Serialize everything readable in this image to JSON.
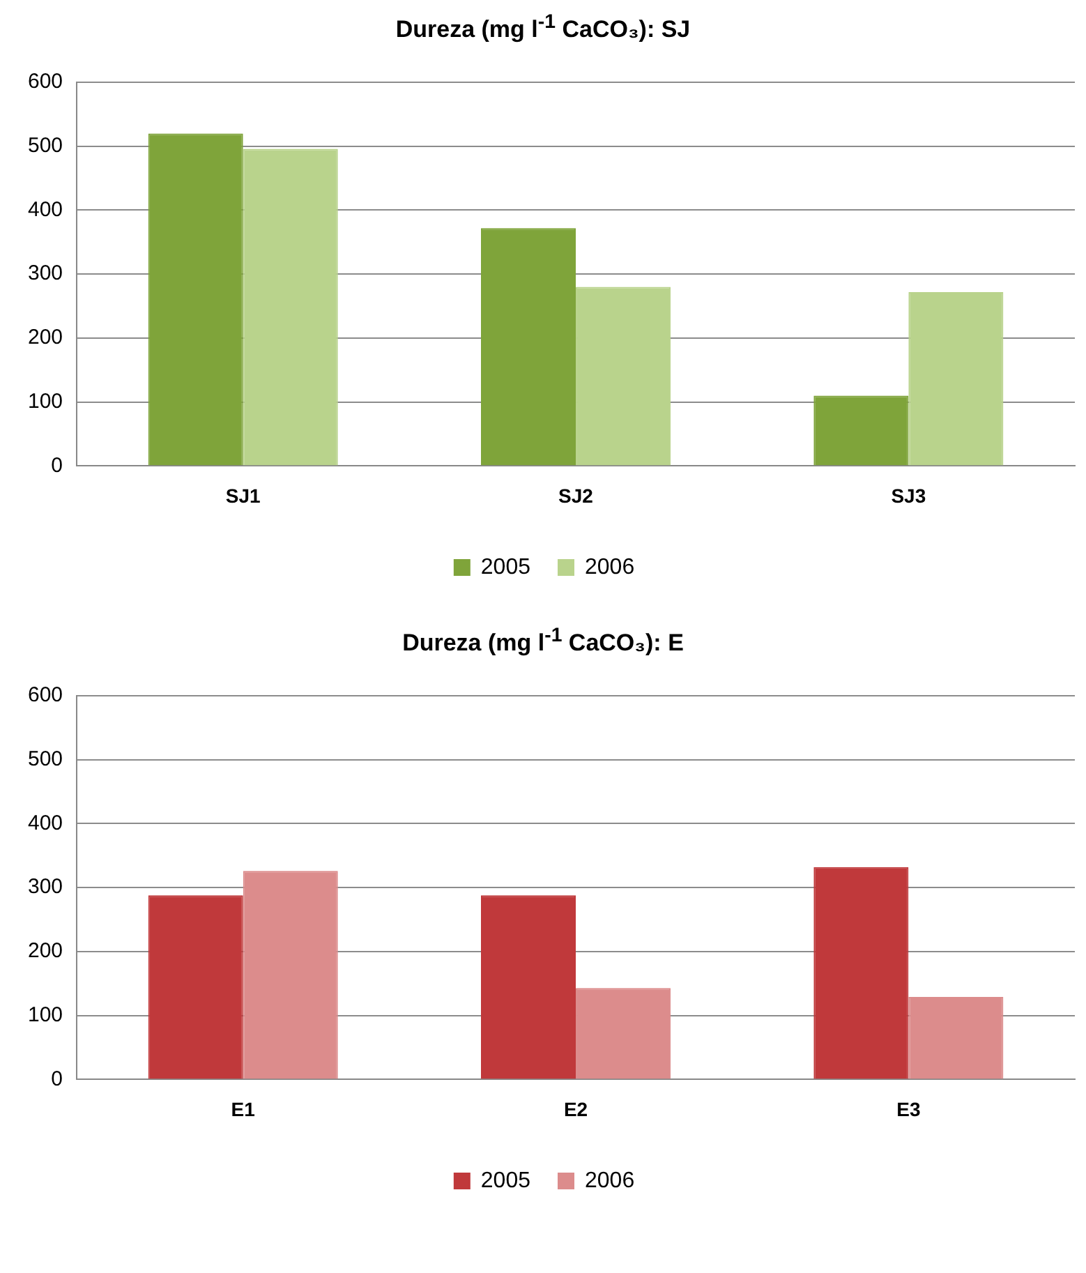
{
  "chart_data": [
    {
      "type": "bar",
      "title": "Dureza (mg l$^{-1}$ CaCO₃): SJ",
      "categories": [
        "SJ1",
        "SJ2",
        "SJ3"
      ],
      "series": [
        {
          "name": "2005",
          "color": "#7fa43a",
          "values": [
            520,
            372,
            110
          ]
        },
        {
          "name": "2006",
          "color": "#b9d38c",
          "values": [
            496,
            280,
            272
          ]
        }
      ],
      "ylim": [
        0,
        600
      ],
      "yticks": [
        0,
        100,
        200,
        300,
        400,
        500,
        600
      ],
      "grid": "y",
      "legend": "bottom"
    },
    {
      "type": "bar",
      "title": "Dureza (mg l$^{-1}$ CaCO₃): E",
      "categories": [
        "E1",
        "E2",
        "E3"
      ],
      "series": [
        {
          "name": "2005",
          "color": "#c0393b",
          "values": [
            288,
            288,
            332
          ]
        },
        {
          "name": "2006",
          "color": "#dc8c8c",
          "values": [
            326,
            143,
            129
          ]
        }
      ],
      "ylim": [
        0,
        600
      ],
      "yticks": [
        0,
        100,
        200,
        300,
        400,
        500,
        600
      ],
      "grid": "y",
      "legend": "bottom"
    }
  ]
}
